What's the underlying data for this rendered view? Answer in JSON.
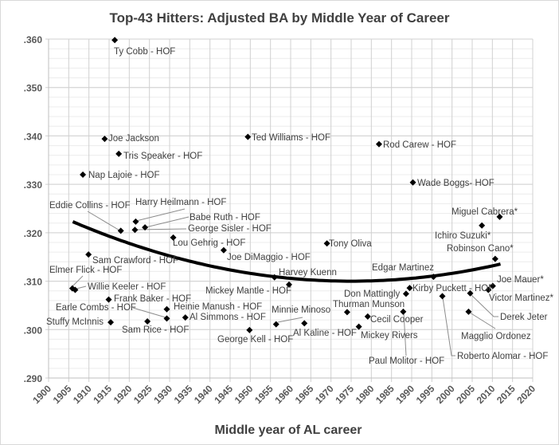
{
  "chart_data": {
    "type": "scatter",
    "title": "Top-43 Hitters: Adjusted BA by Middle Year of Career",
    "xlabel": "Middle year of AL career",
    "ylabel": "",
    "xlim": [
      1900,
      2020
    ],
    "ylim": [
      0.29,
      0.36
    ],
    "x_ticks": [
      "1900",
      "1905",
      "1910",
      "1915",
      "1920",
      "1925",
      "1930",
      "1935",
      "1940",
      "1945",
      "1950",
      "1955",
      "1960",
      "1965",
      "1970",
      "1975",
      "1980",
      "1985",
      "1990",
      "1995",
      "2000",
      "2005",
      "2010",
      "2015",
      "2020"
    ],
    "y_ticks": [
      ".290",
      ".300",
      ".310",
      ".320",
      ".330",
      ".340",
      ".350",
      ".360"
    ],
    "grid": true,
    "marker": "diamond",
    "colors": {
      "marker": "#000000",
      "trendline": "#000000",
      "grid": "#d9d9d9"
    },
    "points": [
      {
        "name": "Ty Cobb - HOF",
        "x": 1916.4,
        "y": 0.3598
      },
      {
        "name": "Joe Jackson",
        "x": 1913.9,
        "y": 0.3394
      },
      {
        "name": "Tris Speaker - HOF",
        "x": 1917.4,
        "y": 0.3363
      },
      {
        "name": "Nap Lajoie - HOF",
        "x": 1908.5,
        "y": 0.332
      },
      {
        "name": "Ted Williams - HOF",
        "x": 1949.4,
        "y": 0.3398
      },
      {
        "name": "Rod Carew - HOF",
        "x": 1981.9,
        "y": 0.3383
      },
      {
        "name": "Wade Boggs- HOF",
        "x": 1990.3,
        "y": 0.3304
      },
      {
        "name": "Eddie Collins - HOF",
        "x": 1917.9,
        "y": 0.3204
      },
      {
        "name": "Harry Heilmann - HOF",
        "x": 1921.6,
        "y": 0.3223
      },
      {
        "name": "Babe Ruth - HOF",
        "x": 1923.9,
        "y": 0.3211
      },
      {
        "name": "George Sisler - HOF",
        "x": 1921.4,
        "y": 0.3206
      },
      {
        "name": "Lou Gehrig - HOF",
        "x": 1930.9,
        "y": 0.319
      },
      {
        "name": "Joe DiMaggio - HOF",
        "x": 1943.4,
        "y": 0.3164
      },
      {
        "name": "Sam Crawford - HOF",
        "x": 1909.9,
        "y": 0.3155
      },
      {
        "name": "Elmer Flick - HOF",
        "x": 1905.9,
        "y": 0.3085
      },
      {
        "name": "Willie Keeler - HOF",
        "x": 1906.6,
        "y": 0.3082
      },
      {
        "name": "Frank Baker - HOF",
        "x": 1914.9,
        "y": 0.3062
      },
      {
        "name": "Earle Combs - HOF",
        "x": 1929.3,
        "y": 0.3023
      },
      {
        "name": "Heinie Manush - HOF",
        "x": 1929.3,
        "y": 0.3042
      },
      {
        "name": "Al Simmons - HOF",
        "x": 1933.9,
        "y": 0.3025
      },
      {
        "name": "Stuffy McInnis",
        "x": 1915.4,
        "y": 0.3015
      },
      {
        "name": "Sam Rice - HOF",
        "x": 1924.5,
        "y": 0.3017
      },
      {
        "name": "George Kell - HOF",
        "x": 1949.8,
        "y": 0.2999
      },
      {
        "name": "Mickey Mantle - HOF",
        "x": 1956.0,
        "y": 0.3108
      },
      {
        "name": "Harvey Kuenn",
        "x": 1959.6,
        "y": 0.3093
      },
      {
        "name": "Minnie Minoso",
        "x": 1956.4,
        "y": 0.3011
      },
      {
        "name": "Al Kaline - HOF",
        "x": 1963.4,
        "y": 0.3013
      },
      {
        "name": "Tony Oliva",
        "x": 1969.0,
        "y": 0.3178
      },
      {
        "name": "Thurman Munson",
        "x": 1974.0,
        "y": 0.3036
      },
      {
        "name": "Mickey Rivers",
        "x": 1976.9,
        "y": 0.3006
      },
      {
        "name": "Cecil Cooper",
        "x": 1979.1,
        "y": 0.3027
      },
      {
        "name": "Paul Molitor - HOF",
        "x": 1987.9,
        "y": 0.3037
      },
      {
        "name": "Don Mattingly",
        "x": 1988.6,
        "y": 0.3074
      },
      {
        "name": "Kirby Puckett - HOF",
        "x": 1989.5,
        "y": 0.3086
      },
      {
        "name": "Edgar Martinez",
        "x": 1995.4,
        "y": 0.3109
      },
      {
        "name": "Roberto Alomar - HOF",
        "x": 1997.6,
        "y": 0.3069
      },
      {
        "name": "Derek Jeter",
        "x": 2004.5,
        "y": 0.3075
      },
      {
        "name": "Magglio Ordonez",
        "x": 2004.1,
        "y": 0.3037
      },
      {
        "name": "Ichiro Suzuki*",
        "x": 2007.4,
        "y": 0.3215
      },
      {
        "name": "Miguel Cabrera*",
        "x": 2011.8,
        "y": 0.3233
      },
      {
        "name": "Robinson Cano*",
        "x": 2010.7,
        "y": 0.3146
      },
      {
        "name": "Joe Mauer*",
        "x": 2010.1,
        "y": 0.309
      },
      {
        "name": "Victor Martinez*",
        "x": 2009.0,
        "y": 0.3082
      }
    ],
    "trendline": {
      "type": "polynomial-2",
      "points": [
        [
          1906,
          0.3223
        ],
        [
          1920,
          0.3178
        ],
        [
          1935,
          0.3141
        ],
        [
          1950,
          0.3116
        ],
        [
          1965,
          0.3103
        ],
        [
          1975,
          0.31
        ],
        [
          1990,
          0.3106
        ],
        [
          2000,
          0.3116
        ],
        [
          2012,
          0.3135
        ]
      ]
    }
  }
}
